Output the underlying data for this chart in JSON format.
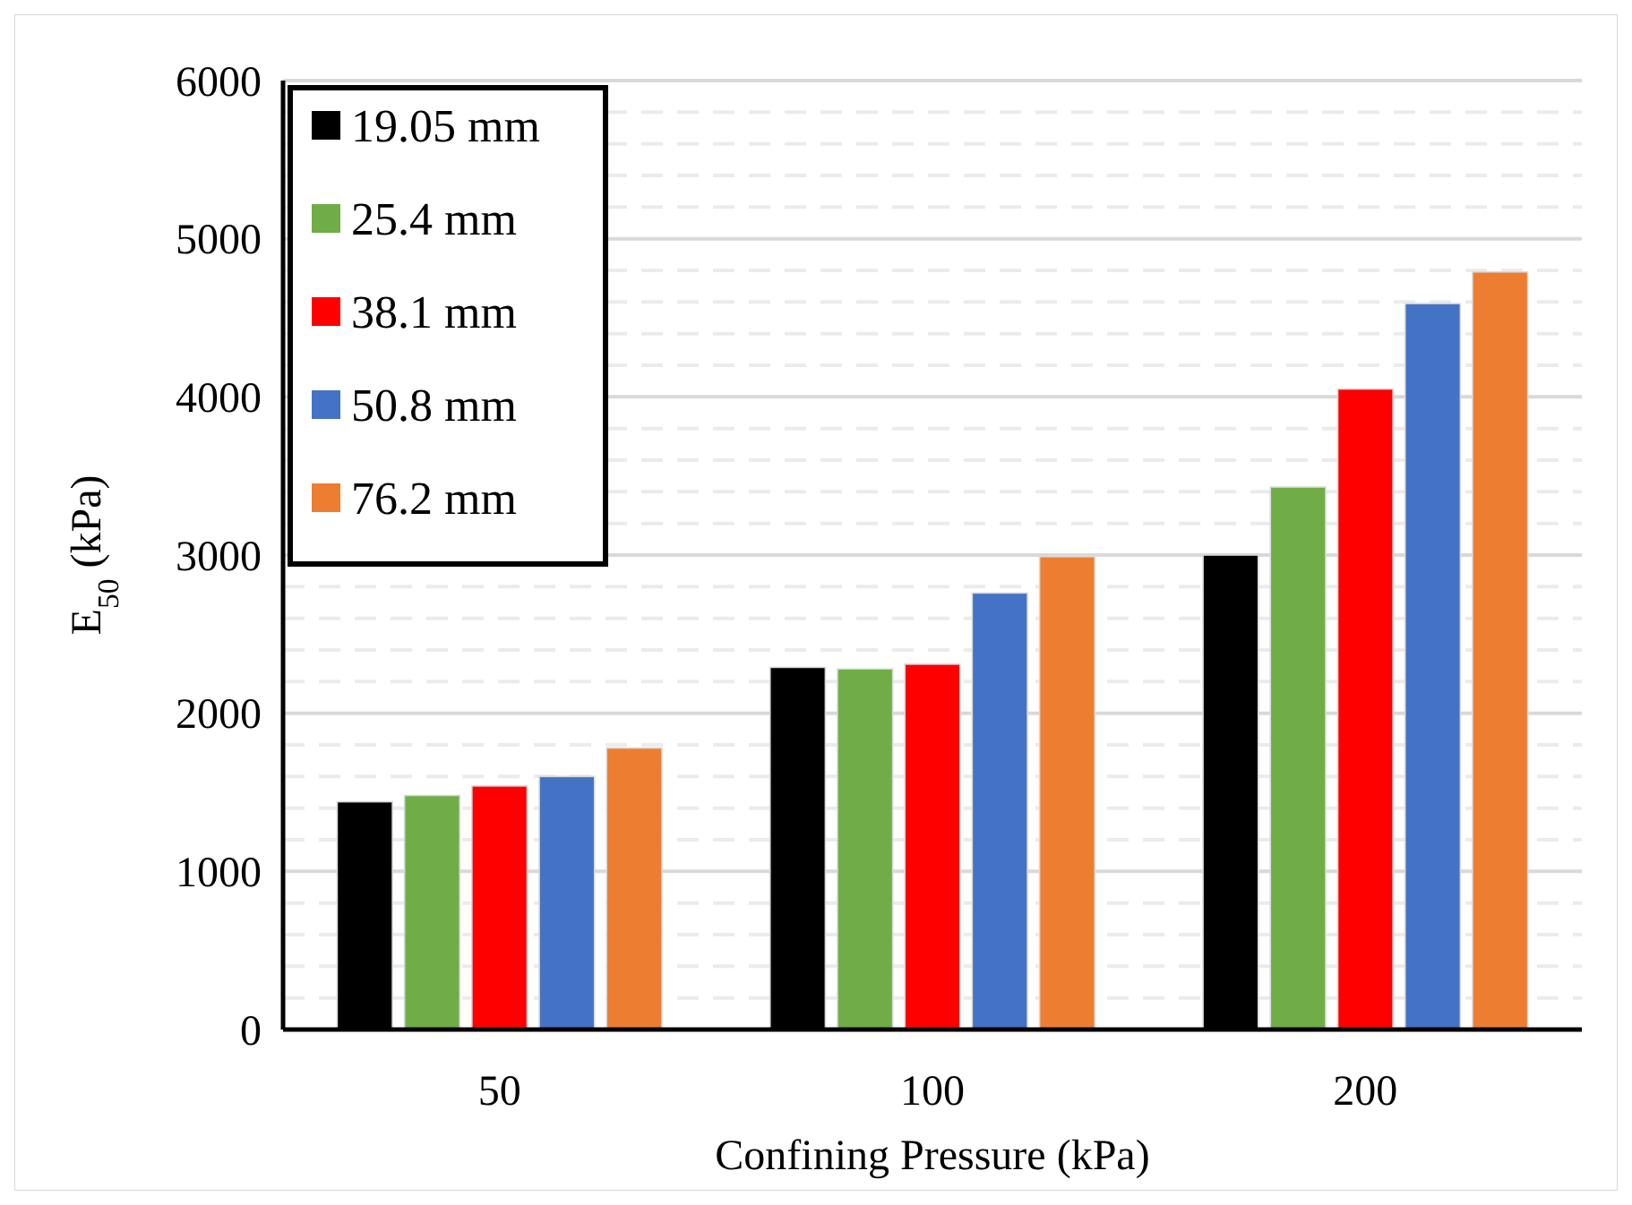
{
  "chart_data": {
    "type": "bar",
    "xlabel": "Confining Pressure (kPa)",
    "ylabel": "E$_{50}$ (kPa)",
    "categories": [
      "50",
      "100",
      "200"
    ],
    "series": [
      {
        "name": "19.05 mm",
        "color": "#000000",
        "values": [
          1440,
          2290,
          3000
        ]
      },
      {
        "name": "25.4 mm",
        "color": "#70ad47",
        "values": [
          1480,
          2280,
          3430
        ]
      },
      {
        "name": "38.1 mm",
        "color": "#ff0000",
        "values": [
          1540,
          2310,
          4050
        ]
      },
      {
        "name": "50.8 mm",
        "color": "#4472c4",
        "values": [
          1600,
          2760,
          4590
        ]
      },
      {
        "name": "76.2 mm",
        "color": "#ed7d31",
        "values": [
          1780,
          2990,
          4790
        ]
      }
    ],
    "ylim": [
      0,
      6000
    ],
    "yticks": [
      0,
      1000,
      2000,
      3000,
      4000,
      5000,
      6000
    ],
    "grid": "y",
    "legend": "top left"
  }
}
